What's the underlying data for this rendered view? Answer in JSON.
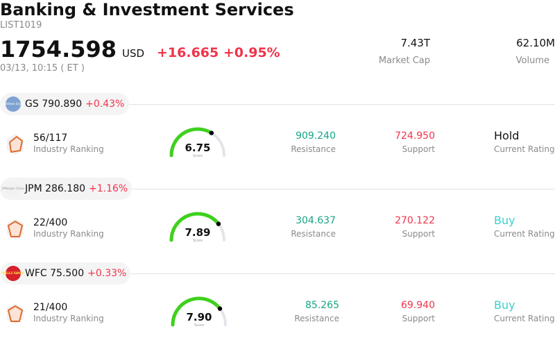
{
  "header": {
    "title": "Banking & Investment Services",
    "code": "LIST1019",
    "price": "1754.598",
    "currency": "USD",
    "change": "+16.665",
    "change_pct": "+0.95%",
    "timestamp": "03/13, 10:15  ( ET )",
    "market_cap": {
      "value": "7.43T",
      "label": "Market Cap"
    },
    "volume": {
      "value": "62.10M",
      "label": "Volume"
    }
  },
  "colors": {
    "up": "#f0344a",
    "support": "#f0344a",
    "resistance": "#17a589",
    "gauge": "#3fd01e",
    "buy": "#3ccfd0"
  },
  "stocks": [
    {
      "symbol": "GS",
      "price": "790.890",
      "change_pct": "+0.43%",
      "logo": {
        "icon": "goldman-sachs-logo",
        "text": "Goldman Sachs"
      },
      "rank": "56/117",
      "rank_label": "Industry Ranking",
      "score": "6.75",
      "score_value": 6.75,
      "score_label": "Score",
      "resistance": "909.240",
      "resistance_label": "Resistance",
      "support": "724.950",
      "support_label": "Support",
      "rating": "Hold",
      "rating_label": "Current Rating"
    },
    {
      "symbol": "JPM",
      "price": "286.180",
      "change_pct": "+1.16%",
      "logo": {
        "icon": "jpmorgan-logo",
        "text": "JPMorgan Chase"
      },
      "rank": "22/400",
      "rank_label": "Industry Ranking",
      "score": "7.89",
      "score_value": 7.89,
      "score_label": "Score",
      "resistance": "304.637",
      "resistance_label": "Resistance",
      "support": "270.122",
      "support_label": "Support",
      "rating": "Buy",
      "rating_label": "Current Rating"
    },
    {
      "symbol": "WFC",
      "price": "75.500",
      "change_pct": "+0.33%",
      "logo": {
        "icon": "wells-fargo-logo",
        "text": "WELLS FARGO"
      },
      "rank": "21/400",
      "rank_label": "Industry Ranking",
      "score": "7.90",
      "score_value": 7.9,
      "score_label": "Score",
      "resistance": "85.265",
      "resistance_label": "Resistance",
      "support": "69.940",
      "support_label": "Support",
      "rating": "Buy",
      "rating_label": "Current Rating"
    }
  ]
}
